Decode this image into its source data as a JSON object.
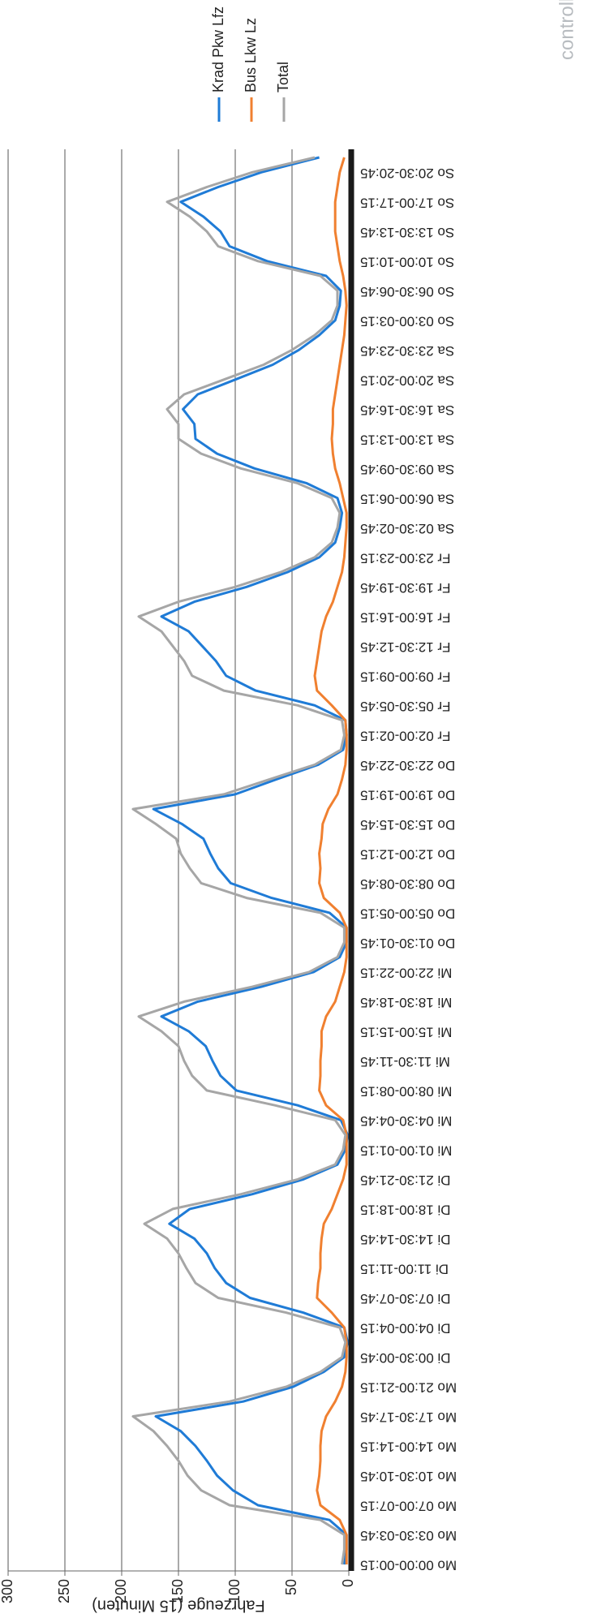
{
  "logo_text": "controlli",
  "chart_data": {
    "type": "line",
    "y_axis_label": "Fahrzeuge (15 Minuten)",
    "categories": [
      "Mo 00:00-00:15",
      null,
      "Mo 03:30-03:45",
      null,
      "Mo 07:00-07:15",
      null,
      "Mo 10:30-10:45",
      null,
      "Mo 14:00-14:15",
      null,
      "Mo 17:30-17:45",
      null,
      "Mo 21:00-21:15",
      null,
      "Di 00:30-00:45",
      null,
      "Di 04:00-04:15",
      null,
      "Di 07:30-07:45",
      null,
      "Di 11:00-11:15",
      null,
      "Di 14:30-14:45",
      null,
      "Di 18:00-18:15",
      null,
      "Di 21:30-21:45",
      null,
      "Mi 01:00-01:15",
      null,
      "Mi 04:30-04:45",
      null,
      "Mi 08:00-08:15",
      null,
      "Mi 11:30-11:45",
      null,
      "Mi 15:00-15:15",
      null,
      "Mi 18:30-18:45",
      null,
      "Mi 22:00-22:15",
      null,
      "Do 01:30-01:45",
      null,
      "Do 05:00-05:15",
      null,
      "Do 08:30-08:45",
      null,
      "Do 12:00-12:15",
      null,
      "Do 15:30-15:45",
      null,
      "Do 19:00-19:15",
      null,
      "Do 22:30-22:45",
      null,
      "Fr 02:00-02:15",
      null,
      "Fr 05:30-05:45",
      null,
      "Fr 09:00-09:15",
      null,
      "Fr 12:30-12:45",
      null,
      "Fr 16:00-16:15",
      null,
      "Fr 19:30-19:45",
      null,
      "Fr 23:00-23:15",
      null,
      "Sa 02:30-02:45",
      null,
      "Sa 06:00-06:15",
      null,
      "Sa 09:30-09:45",
      null,
      "Sa 13:00-13:15",
      null,
      "Sa 16:30-16:45",
      null,
      "Sa 20:00-20:15",
      null,
      "Sa 23:30-23:45",
      null,
      "So 03:00-03:15",
      null,
      "So 06:30-06:45",
      null,
      "So 10:00-10:15",
      null,
      "So 13:30-13:45",
      null,
      "So 17:00-17:15",
      null,
      "So 20:30-20:45",
      null
    ],
    "series": [
      {
        "name": "Krad Pkw Lfz",
        "color": "#1f7bd6",
        "values": [
          4,
          2,
          2,
          17,
          80,
          102,
          116,
          125,
          135,
          148,
          170,
          93,
          49,
          22,
          4,
          1,
          4,
          40,
          87,
          108,
          118,
          125,
          136,
          158,
          140,
          85,
          40,
          10,
          3,
          1,
          7,
          45,
          99,
          113,
          120,
          126,
          141,
          165,
          133,
          77,
          31,
          8,
          2,
          2,
          17,
          68,
          104,
          115,
          122,
          128,
          147,
          172,
          100,
          64,
          27,
          5,
          2,
          3,
          30,
          82,
          108,
          117,
          129,
          141,
          165,
          136,
          90,
          54,
          26,
          12,
          8,
          6,
          10,
          37,
          83,
          116,
          135,
          136,
          146,
          133,
          100,
          67,
          44,
          26,
          12,
          8,
          7,
          20,
          72,
          105,
          113,
          128,
          148,
          115,
          77,
          26
        ]
      },
      {
        "name": "Bus Lkw Lz",
        "color": "#f08030",
        "values": [
          2,
          2,
          2,
          8,
          25,
          28,
          26,
          25,
          25,
          24,
          20,
          12,
          6,
          3,
          2,
          2,
          4,
          15,
          28,
          27,
          25,
          25,
          24,
          22,
          15,
          10,
          5,
          2,
          2,
          2,
          5,
          20,
          26,
          25,
          25,
          24,
          24,
          20,
          12,
          8,
          4,
          2,
          2,
          2,
          8,
          22,
          26,
          25,
          26,
          24,
          23,
          18,
          10,
          6,
          3,
          2,
          2,
          3,
          15,
          28,
          30,
          28,
          26,
          24,
          20,
          14,
          10,
          6,
          4,
          3,
          2,
          2,
          5,
          8,
          12,
          14,
          15,
          14,
          14,
          12,
          10,
          8,
          6,
          4,
          3,
          2,
          3,
          5,
          8,
          10,
          12,
          12,
          12,
          10,
          8,
          4
        ]
      },
      {
        "name": "Total",
        "color": "#a6a6a6",
        "values": [
          6,
          4,
          4,
          25,
          105,
          130,
          142,
          150,
          160,
          172,
          190,
          105,
          55,
          25,
          6,
          3,
          8,
          55,
          115,
          135,
          143,
          150,
          160,
          180,
          155,
          95,
          45,
          12,
          5,
          3,
          12,
          65,
          125,
          138,
          145,
          150,
          165,
          185,
          145,
          85,
          35,
          10,
          4,
          4,
          25,
          90,
          130,
          140,
          148,
          152,
          170,
          190,
          110,
          70,
          30,
          7,
          4,
          6,
          45,
          110,
          138,
          145,
          155,
          165,
          185,
          150,
          100,
          60,
          30,
          15,
          10,
          8,
          15,
          45,
          95,
          130,
          150,
          150,
          160,
          145,
          110,
          75,
          50,
          30,
          15,
          10,
          10,
          25,
          80,
          115,
          125,
          140,
          160,
          125,
          85,
          30
        ]
      }
    ],
    "ylim": [
      0,
      300
    ],
    "yticks": [
      0,
      50,
      100,
      150,
      200,
      250,
      300
    ],
    "grid": true,
    "legend": "right"
  }
}
